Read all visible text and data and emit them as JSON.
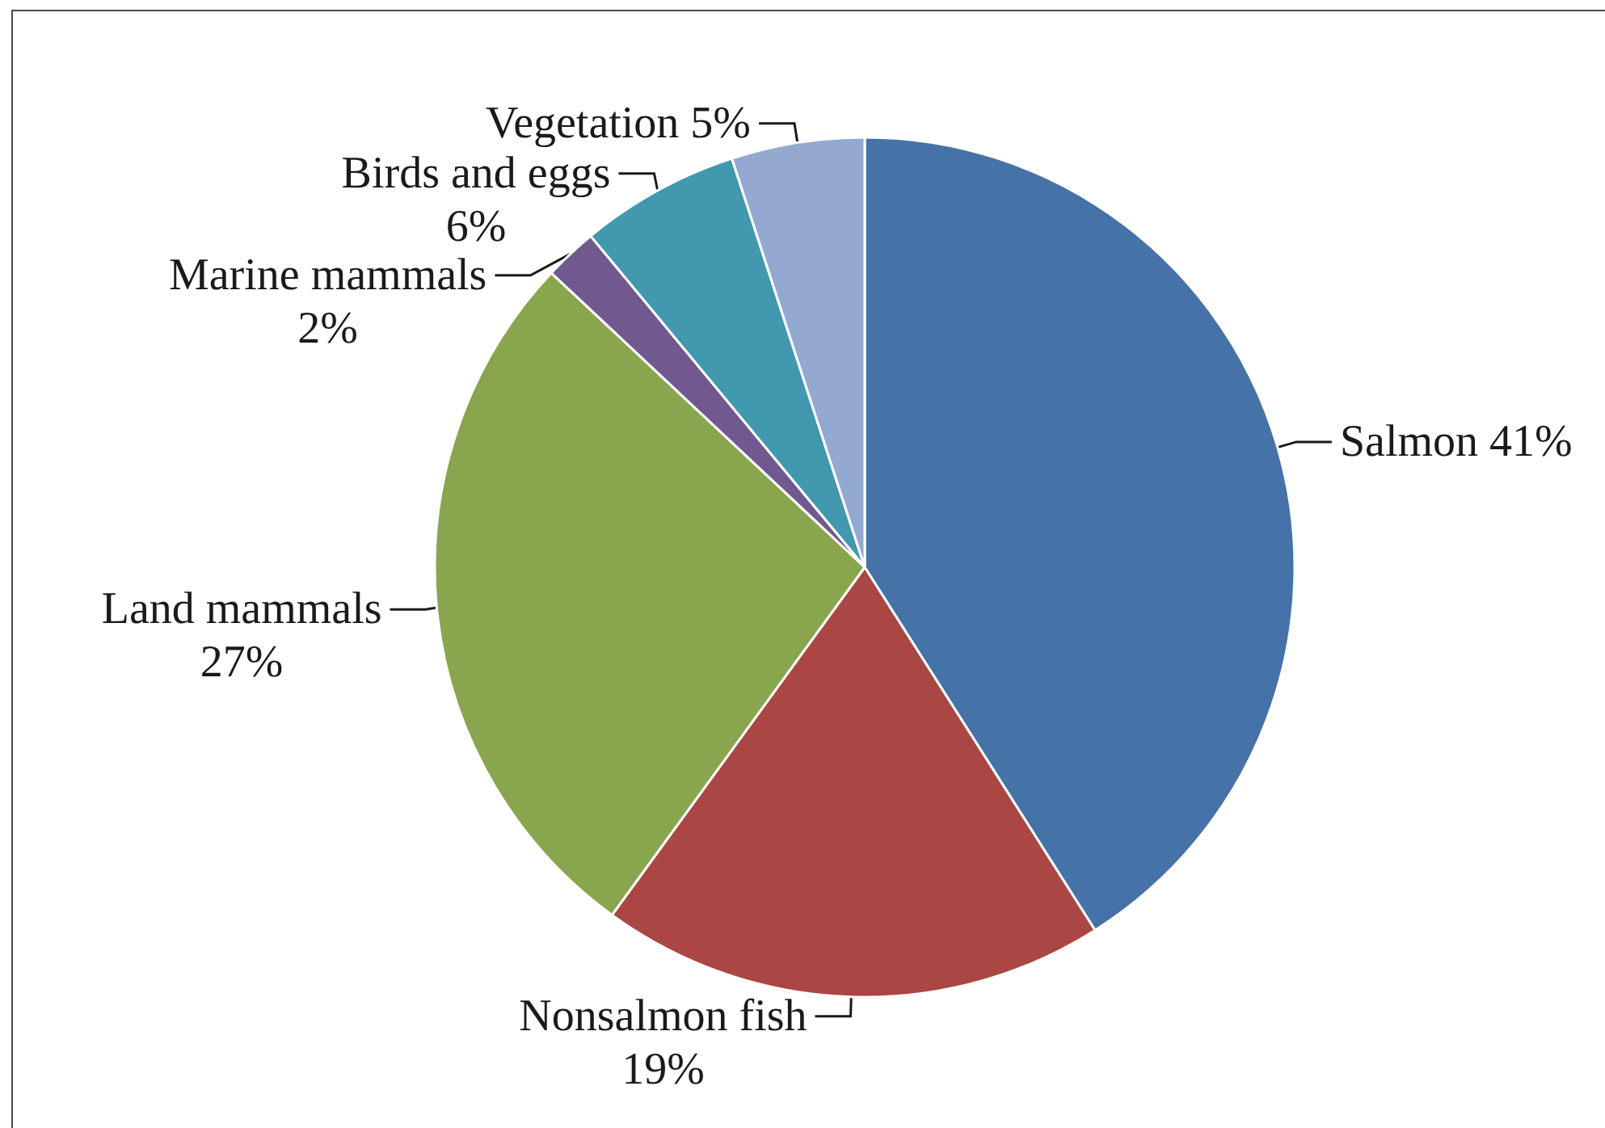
{
  "chart_data": {
    "type": "pie",
    "categories": [
      "Salmon",
      "Nonsalmon fish",
      "Land mammals",
      "Marine mammals",
      "Birds and eggs",
      "Vegetation"
    ],
    "values": [
      41,
      19,
      27,
      2,
      6,
      5
    ],
    "colors": [
      "#4572a7",
      "#aa4643",
      "#89a54e",
      "#71588f",
      "#4198af",
      "#93a9cf"
    ],
    "value_labels": [
      "41%",
      "19%",
      "27%",
      "2%",
      "6%",
      "5%"
    ]
  }
}
